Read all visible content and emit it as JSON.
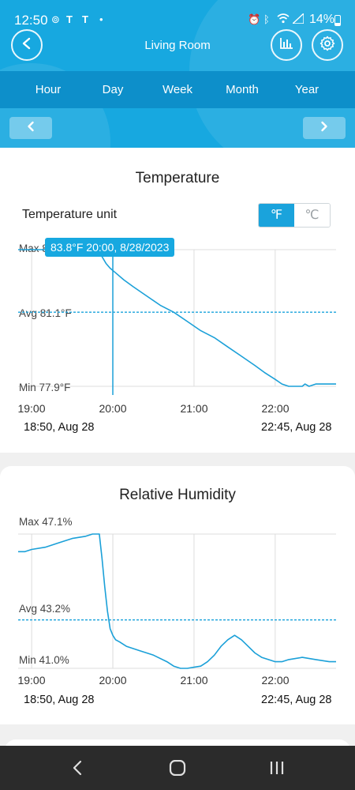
{
  "status_bar": {
    "time": "12:50",
    "battery": "14%",
    "icons": [
      "sync-icon",
      "tesla-icon",
      "tesla-icon",
      "dot-icon",
      "alarm-icon",
      "bluetooth-icon",
      "wifi-icon",
      "signal-icon",
      "battery-icon"
    ]
  },
  "header": {
    "title": "Living Room",
    "back_icon": "chevron-left-icon",
    "chart_icon": "bar-chart-icon",
    "settings_icon": "gear-icon"
  },
  "tabs": [
    "Hour",
    "Day",
    "Week",
    "Month",
    "Year"
  ],
  "temperature": {
    "title": "Temperature",
    "unit_label": "Temperature unit",
    "unit_f": "℉",
    "unit_c": "℃",
    "selected_unit": "F",
    "max_label": "Max 83.8°F",
    "avg_label": "Avg 81.1°F",
    "min_label": "Min 77.9°F",
    "tooltip": "83.8°F 20:00, 8/28/2023",
    "x_ticks": [
      "19:00",
      "20:00",
      "21:00",
      "22:00"
    ],
    "range_start": "18:50, Aug 28",
    "range_end": "22:45, Aug 28"
  },
  "humidity": {
    "title": "Relative Humidity",
    "max_label": "Max 47.1%",
    "avg_label": "Avg 43.2%",
    "min_label": "Min 41.0%",
    "x_ticks": [
      "19:00",
      "20:00",
      "21:00",
      "22:00"
    ],
    "range_start": "18:50, Aug 28",
    "range_end": "22:45, Aug 28"
  },
  "colors": {
    "header": "#17a8e0",
    "tab_bar": "#0d8fca",
    "line": "#1ba0d8",
    "avg_line": "#1aa3dc"
  },
  "chart_data": [
    {
      "type": "line",
      "title": "Temperature",
      "x_unit": "minutes since 18:50",
      "xlim": [
        0,
        235
      ],
      "ylim": [
        77.9,
        83.8
      ],
      "avg": 81.1,
      "series": [
        {
          "x": [
            0,
            12,
            30,
            40,
            45,
            58,
            60,
            62,
            65,
            68,
            72,
            78,
            85,
            95,
            105,
            115,
            125,
            135,
            145,
            155,
            165,
            175,
            182,
            190,
            195,
            200,
            205,
            210,
            212,
            215,
            220,
            225,
            230,
            235
          ],
          "values": [
            83.8,
            83.8,
            83.8,
            83.8,
            83.8,
            83.8,
            83.6,
            83.5,
            83.2,
            83.0,
            82.8,
            82.5,
            82.2,
            81.8,
            81.4,
            81.1,
            80.7,
            80.3,
            80.0,
            79.6,
            79.2,
            78.8,
            78.5,
            78.2,
            78.0,
            77.9,
            77.9,
            77.9,
            78.0,
            77.9,
            78.0,
            78.0,
            78.0,
            78.0
          ]
        }
      ]
    },
    {
      "type": "line",
      "title": "Relative Humidity",
      "x_unit": "minutes since 18:50",
      "xlim": [
        0,
        235
      ],
      "ylim": [
        41.0,
        47.1
      ],
      "avg": 43.2,
      "series": [
        {
          "x": [
            0,
            5,
            10,
            20,
            30,
            40,
            50,
            55,
            58,
            60,
            62,
            64,
            66,
            68,
            70,
            72,
            75,
            80,
            90,
            100,
            110,
            115,
            120,
            125,
            130,
            135,
            140,
            145,
            150,
            155,
            160,
            165,
            170,
            175,
            180,
            185,
            190,
            195,
            200,
            210,
            220,
            230,
            235
          ],
          "values": [
            46.3,
            46.3,
            46.4,
            46.5,
            46.7,
            46.9,
            47.0,
            47.1,
            47.1,
            47.1,
            46.0,
            44.7,
            43.6,
            42.8,
            42.5,
            42.3,
            42.2,
            42.0,
            41.8,
            41.6,
            41.3,
            41.1,
            41.0,
            41.0,
            41.05,
            41.1,
            41.3,
            41.6,
            42.0,
            42.3,
            42.5,
            42.3,
            42.0,
            41.7,
            41.5,
            41.4,
            41.3,
            41.3,
            41.4,
            41.5,
            41.4,
            41.3,
            41.3
          ]
        }
      ]
    }
  ]
}
